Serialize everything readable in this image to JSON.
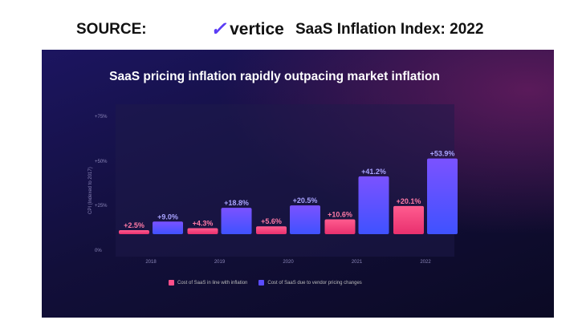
{
  "header": {
    "source_label": "SOURCE:",
    "logo_text": "vertice",
    "report_title": "SaaS Inflation Index: 2022"
  },
  "chart_data": {
    "type": "bar",
    "title": "SaaS pricing inflation rapidly outpacing market inflation",
    "ylabel": "CPI (Indexed to 2017)",
    "xlabel": "",
    "ylim": [
      0,
      75
    ],
    "yticks": [
      "0%",
      "+25%",
      "+50%",
      "+75%"
    ],
    "categories": [
      "2018",
      "2019",
      "2020",
      "2021",
      "2022"
    ],
    "series": [
      {
        "name": "Cost of SaaS in line with inflation",
        "color": "#ff4f8a",
        "values": [
          2.5,
          4.3,
          5.6,
          10.6,
          20.1
        ],
        "labels": [
          "+2.5%",
          "+4.3%",
          "+5.6%",
          "+10.6%",
          "+20.1%"
        ]
      },
      {
        "name": "Cost of SaaS due to vendor pricing changes",
        "color": "#5a4cff",
        "values": [
          9.0,
          18.8,
          20.5,
          41.2,
          53.9
        ],
        "labels": [
          "+9.0%",
          "+18.8%",
          "+20.5%",
          "+41.2%",
          "+53.9%"
        ]
      }
    ],
    "legend_position": "bottom"
  }
}
